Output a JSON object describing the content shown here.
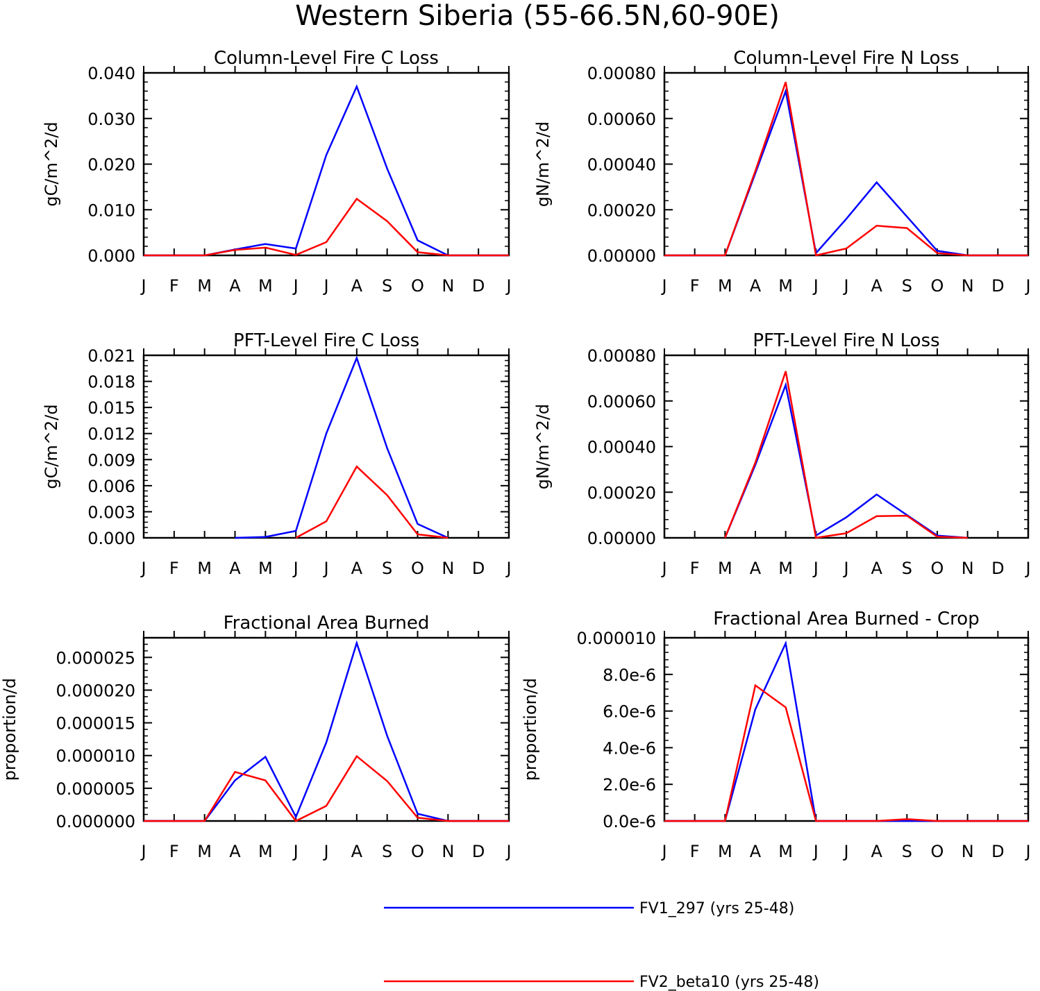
{
  "title": "Western Siberia (55-66.5N,60-90E)",
  "legend": [
    {
      "label": "FV1_297 (yrs 25-48)",
      "color": "#0000ff"
    },
    {
      "label": "FV2_beta10 (yrs 25-48)",
      "color": "#ff0000"
    }
  ],
  "chart_data": [
    {
      "type": "line",
      "title": "Column-Level Fire C Loss",
      "ylabel": "gC/m^2/d",
      "categories": [
        "J",
        "F",
        "M",
        "A",
        "M",
        "J",
        "J",
        "A",
        "S",
        "O",
        "N",
        "D",
        "J"
      ],
      "ylim": [
        0,
        0.04
      ],
      "yticks": [
        "0.000",
        "0.010",
        "0.020",
        "0.030",
        "0.040"
      ],
      "series": [
        {
          "name": "FV1_297 (yrs 25-48)",
          "values": [
            0,
            0,
            0,
            0.0013,
            0.0025,
            0.0015,
            0.022,
            0.037,
            0.019,
            0.0033,
            0,
            0,
            0
          ]
        },
        {
          "name": "FV2_beta10 (yrs 25-48)",
          "values": [
            0,
            0,
            0,
            0.0012,
            0.0017,
            0.0001,
            0.0029,
            0.0124,
            0.0075,
            0.0007,
            0,
            0,
            0
          ]
        }
      ]
    },
    {
      "type": "line",
      "title": "Column-Level Fire N Loss",
      "ylabel": "gN/m^2/d",
      "categories": [
        "J",
        "F",
        "M",
        "A",
        "M",
        "J",
        "J",
        "A",
        "S",
        "O",
        "N",
        "D",
        "J"
      ],
      "ylim": [
        0,
        0.0008
      ],
      "yticks": [
        "0.00000",
        "0.00020",
        "0.00040",
        "0.00060",
        "0.00080"
      ],
      "series": [
        {
          "name": "FV1_297 (yrs 25-48)",
          "values": [
            0,
            0,
            0,
            0.00036,
            0.00072,
            1e-05,
            0.00016,
            0.00032,
            0.00017,
            2e-05,
            0,
            0,
            0
          ]
        },
        {
          "name": "FV2_beta10 (yrs 25-48)",
          "values": [
            0,
            0,
            0,
            0.00037,
            0.00076,
            0,
            3e-05,
            0.00013,
            0.00012,
            1e-05,
            0,
            0,
            0
          ]
        }
      ]
    },
    {
      "type": "line",
      "title": "PFT-Level Fire C Loss",
      "ylabel": "gC/m^2/d",
      "categories": [
        "J",
        "F",
        "M",
        "A",
        "M",
        "J",
        "J",
        "A",
        "S",
        "O",
        "N",
        "D",
        "J"
      ],
      "ylim": [
        0,
        0.021
      ],
      "yticks": [
        "0.000",
        "0.003",
        "0.006",
        "0.009",
        "0.012",
        "0.015",
        "0.018",
        "0.021"
      ],
      "series": [
        {
          "name": "FV1_297 (yrs 25-48)",
          "values": [
            null,
            null,
            null,
            0,
            0.0001,
            0.0008,
            0.012,
            0.0207,
            0.0103,
            0.0016,
            0,
            null,
            null
          ]
        },
        {
          "name": "FV2_beta10 (yrs 25-48)",
          "values": [
            null,
            null,
            null,
            null,
            null,
            0,
            0.0019,
            0.0082,
            0.0049,
            0.0004,
            0,
            null,
            null
          ]
        }
      ]
    },
    {
      "type": "line",
      "title": "PFT-Level Fire N Loss",
      "ylabel": "gN/m^2/d",
      "categories": [
        "J",
        "F",
        "M",
        "A",
        "M",
        "J",
        "J",
        "A",
        "S",
        "O",
        "N",
        "D",
        "J"
      ],
      "ylim": [
        0,
        0.0008
      ],
      "yticks": [
        "0.00000",
        "0.00020",
        "0.00040",
        "0.00060",
        "0.00080"
      ],
      "series": [
        {
          "name": "FV1_297 (yrs 25-48)",
          "values": [
            null,
            null,
            0,
            0.00032,
            0.00067,
            1e-05,
            9e-05,
            0.00019,
            0.0001,
            1e-05,
            0,
            null,
            null
          ]
        },
        {
          "name": "FV2_beta10 (yrs 25-48)",
          "values": [
            null,
            null,
            0,
            0.00033,
            0.00073,
            0,
            2e-05,
            9.5e-05,
            9.7e-05,
            5e-06,
            0,
            null,
            null
          ]
        }
      ]
    },
    {
      "type": "line",
      "title": "Fractional Area Burned",
      "ylabel": "proportion/d",
      "categories": [
        "J",
        "F",
        "M",
        "A",
        "M",
        "J",
        "J",
        "A",
        "S",
        "O",
        "N",
        "D",
        "J"
      ],
      "ylim": [
        0,
        2.8e-05
      ],
      "yticks": [
        "0.000000",
        "0.000005",
        "0.000010",
        "0.000015",
        "0.000020",
        "0.000025"
      ],
      "series": [
        {
          "name": "FV1_297 (yrs 25-48)",
          "values": [
            0,
            0,
            0,
            6.2e-06,
            9.8e-06,
            6e-07,
            1.2e-05,
            2.72e-05,
            1.3e-05,
            1.1e-06,
            0,
            0,
            0
          ]
        },
        {
          "name": "FV2_beta10 (yrs 25-48)",
          "values": [
            0,
            0,
            0,
            7.5e-06,
            6.2e-06,
            0,
            2.3e-06,
            9.9e-06,
            6.1e-06,
            5e-07,
            0,
            0,
            0
          ]
        }
      ]
    },
    {
      "type": "line",
      "title": "Fractional Area Burned - Crop",
      "ylabel": "proportion/d",
      "categories": [
        "J",
        "F",
        "M",
        "A",
        "M",
        "J",
        "J",
        "A",
        "S",
        "O",
        "N",
        "D",
        "J"
      ],
      "ylim": [
        0,
        1e-05
      ],
      "yticks": [
        "0.0e-6",
        "2.0e-6",
        "4.0e-6",
        "6.0e-6",
        "8.0e-6",
        "0.000010"
      ],
      "series": [
        {
          "name": "FV1_297 (yrs 25-48)",
          "values": [
            0,
            0,
            0,
            6.1e-06,
            9.7e-06,
            0,
            0,
            0,
            0,
            0,
            0,
            0,
            0
          ]
        },
        {
          "name": "FV2_beta10 (yrs 25-48)",
          "values": [
            0,
            0,
            0,
            7.4e-06,
            6.2e-06,
            0,
            0,
            0,
            1e-07,
            0,
            0,
            0,
            0
          ]
        }
      ]
    }
  ]
}
